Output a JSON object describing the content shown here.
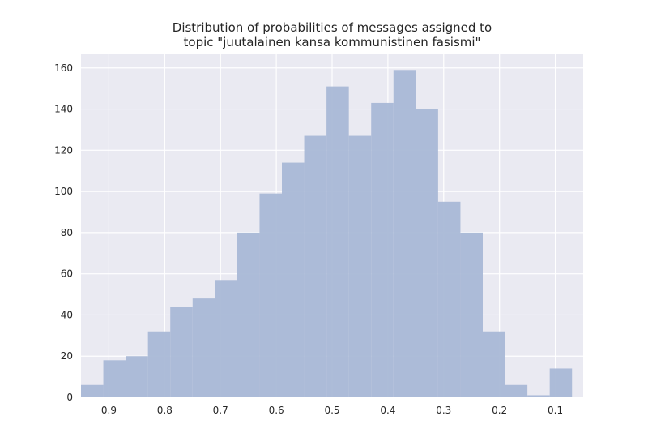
{
  "chart_data": {
    "type": "bar",
    "title_lines": [
      "Distribution of probabilities of messages assigned to",
      "topic \"juutalainen kansa kommunistinen fasismi\""
    ],
    "xlabel": "",
    "ylabel": "",
    "x_axis_inverted": true,
    "xlim": [
      0.95,
      0.05
    ],
    "ylim": [
      0,
      167
    ],
    "grid": true,
    "x_ticks": [
      0.9,
      0.8,
      0.7,
      0.6,
      0.5,
      0.4,
      0.3,
      0.2,
      0.1
    ],
    "x_tick_labels": [
      "0.9",
      "0.8",
      "0.7",
      "0.6",
      "0.5",
      "0.4",
      "0.3",
      "0.2",
      "0.1"
    ],
    "y_ticks": [
      0,
      20,
      40,
      60,
      80,
      100,
      120,
      140,
      160
    ],
    "y_tick_labels": [
      "0",
      "20",
      "40",
      "60",
      "80",
      "100",
      "120",
      "140",
      "160"
    ],
    "bin_edges": [
      0.95,
      0.91,
      0.87,
      0.83,
      0.79,
      0.75,
      0.71,
      0.67,
      0.63,
      0.59,
      0.55,
      0.51,
      0.47,
      0.43,
      0.39,
      0.35,
      0.31,
      0.27,
      0.23,
      0.19,
      0.15,
      0.11,
      0.07
    ],
    "values": [
      6,
      18,
      20,
      32,
      44,
      48,
      57,
      80,
      99,
      114,
      127,
      151,
      127,
      143,
      159,
      140,
      95,
      80,
      32,
      6,
      1,
      14
    ],
    "colors": {
      "bar": "#a9b8d6",
      "background": "#eaeaf2",
      "grid": "#ffffff",
      "text": "#262626"
    }
  }
}
